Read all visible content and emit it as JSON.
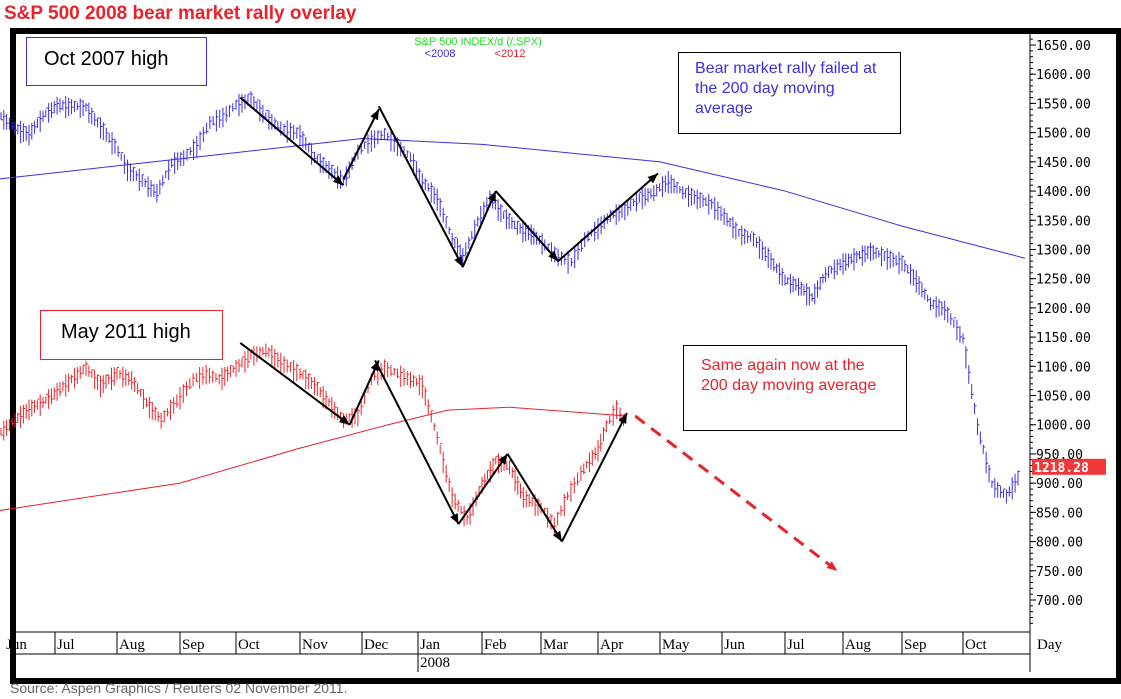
{
  "title": "S&P 500 2008 bear market rally overlay",
  "source": "Source: Aspen Graphics / Reuters 02 November 2011.",
  "colors": {
    "series_2008": "#3b2fe0",
    "series_2012": "#e8232a",
    "title": "#e8232a",
    "legend_title": "#22dd22"
  },
  "chart_data": {
    "type": "bar",
    "title": "S&P 500  INDEX/d  (/.SPX)",
    "legend": [
      {
        "label": "<2008",
        "color": "#3b2fe0"
      },
      {
        "label": "<2012",
        "color": "#e8232a"
      }
    ],
    "y_ticks": [
      "1650.00",
      "1600.00",
      "1550.00",
      "1500.00",
      "1450.00",
      "1400.00",
      "1350.00",
      "1300.00",
      "1250.00",
      "1200.00",
      "1150.00",
      "1100.00",
      "1050.00",
      "1000.00",
      "950.00",
      "900.00",
      "850.00",
      "800.00",
      "750.00",
      "700.00"
    ],
    "ylim": [
      650,
      1680
    ],
    "x_ticks": [
      "Jun",
      "Jul",
      "Aug",
      "Sep",
      "Oct",
      "Nov",
      "Dec",
      "Jan",
      "Feb",
      "Mar",
      "Apr",
      "May",
      "Jun",
      "Jul",
      "Aug",
      "Sep",
      "Oct"
    ],
    "x_year_label": "2008",
    "x_unit_label": "Day",
    "last_price_tag": "1218.28",
    "series": [
      {
        "name": "<2008",
        "color": "#3b2fe0",
        "points": [
          [
            "2007-06-04",
            1530
          ],
          [
            "2007-06-11",
            1510
          ],
          [
            "2007-06-18",
            1500
          ],
          [
            "2007-06-25",
            1530
          ],
          [
            "2007-07-02",
            1550
          ],
          [
            "2007-07-16",
            1545
          ],
          [
            "2007-07-30",
            1480
          ],
          [
            "2007-08-06",
            1440
          ],
          [
            "2007-08-13",
            1420
          ],
          [
            "2007-08-20",
            1400
          ],
          [
            "2007-08-27",
            1450
          ],
          [
            "2007-09-03",
            1460
          ],
          [
            "2007-09-10",
            1480
          ],
          [
            "2007-09-17",
            1520
          ],
          [
            "2007-09-24",
            1530
          ],
          [
            "2007-10-01",
            1550
          ],
          [
            "2007-10-08",
            1560
          ],
          [
            "2007-10-15",
            1530
          ],
          [
            "2007-10-22",
            1510
          ],
          [
            "2007-11-01",
            1500
          ],
          [
            "2007-11-08",
            1460
          ],
          [
            "2007-11-15",
            1440
          ],
          [
            "2007-11-22",
            1420
          ],
          [
            "2007-11-29",
            1470
          ],
          [
            "2007-12-06",
            1490
          ],
          [
            "2007-12-13",
            1500
          ],
          [
            "2007-12-20",
            1480
          ],
          [
            "2007-12-27",
            1460
          ],
          [
            "2008-01-03",
            1420
          ],
          [
            "2008-01-10",
            1390
          ],
          [
            "2008-01-17",
            1320
          ],
          [
            "2008-01-22",
            1290
          ],
          [
            "2008-01-29",
            1350
          ],
          [
            "2008-02-05",
            1390
          ],
          [
            "2008-02-12",
            1360
          ],
          [
            "2008-02-19",
            1340
          ],
          [
            "2008-02-26",
            1330
          ],
          [
            "2008-03-03",
            1310
          ],
          [
            "2008-03-10",
            1290
          ],
          [
            "2008-03-17",
            1280
          ],
          [
            "2008-03-24",
            1320
          ],
          [
            "2008-03-31",
            1340
          ],
          [
            "2008-04-07",
            1360
          ],
          [
            "2008-04-14",
            1370
          ],
          [
            "2008-04-21",
            1390
          ],
          [
            "2008-04-28",
            1400
          ],
          [
            "2008-05-05",
            1420
          ],
          [
            "2008-05-12",
            1400
          ],
          [
            "2008-05-19",
            1390
          ],
          [
            "2008-05-26",
            1380
          ],
          [
            "2008-06-02",
            1360
          ],
          [
            "2008-06-09",
            1330
          ],
          [
            "2008-06-16",
            1320
          ],
          [
            "2008-06-23",
            1290
          ],
          [
            "2008-07-01",
            1250
          ],
          [
            "2008-07-08",
            1240
          ],
          [
            "2008-07-15",
            1220
          ],
          [
            "2008-07-22",
            1260
          ],
          [
            "2008-08-01",
            1280
          ],
          [
            "2008-08-08",
            1290
          ],
          [
            "2008-08-15",
            1300
          ],
          [
            "2008-08-22",
            1290
          ],
          [
            "2008-09-01",
            1280
          ],
          [
            "2008-09-08",
            1250
          ],
          [
            "2008-09-15",
            1210
          ],
          [
            "2008-09-22",
            1200
          ],
          [
            "2008-10-01",
            1150
          ],
          [
            "2008-10-08",
            1000
          ],
          [
            "2008-10-15",
            900
          ],
          [
            "2008-10-22",
            880
          ],
          [
            "2008-10-29",
            920
          ]
        ]
      },
      {
        "name": "<2012",
        "color": "#e8232a",
        "points": [
          [
            "2007-06-04",
            990
          ],
          [
            "2007-06-11",
            1010
          ],
          [
            "2007-06-18",
            1030
          ],
          [
            "2007-06-25",
            1040
          ],
          [
            "2007-07-02",
            1060
          ],
          [
            "2007-07-09",
            1080
          ],
          [
            "2007-07-16",
            1100
          ],
          [
            "2007-07-23",
            1070
          ],
          [
            "2007-08-01",
            1090
          ],
          [
            "2007-08-08",
            1080
          ],
          [
            "2007-08-15",
            1040
          ],
          [
            "2007-08-22",
            1010
          ],
          [
            "2007-09-01",
            1050
          ],
          [
            "2007-09-08",
            1080
          ],
          [
            "2007-09-15",
            1090
          ],
          [
            "2007-09-22",
            1080
          ],
          [
            "2007-10-01",
            1100
          ],
          [
            "2007-10-08",
            1120
          ],
          [
            "2007-10-15",
            1130
          ],
          [
            "2007-10-22",
            1110
          ],
          [
            "2007-11-01",
            1090
          ],
          [
            "2007-11-08",
            1070
          ],
          [
            "2007-11-15",
            1040
          ],
          [
            "2007-11-22",
            1010
          ],
          [
            "2007-11-29",
            1020
          ],
          [
            "2007-12-06",
            1080
          ],
          [
            "2007-12-13",
            1100
          ],
          [
            "2007-12-20",
            1090
          ],
          [
            "2007-12-27",
            1080
          ],
          [
            "2008-01-03",
            1070
          ],
          [
            "2008-01-10",
            980
          ],
          [
            "2008-01-17",
            880
          ],
          [
            "2008-01-24",
            840
          ],
          [
            "2008-02-01",
            900
          ],
          [
            "2008-02-08",
            940
          ],
          [
            "2008-02-15",
            930
          ],
          [
            "2008-02-22",
            880
          ],
          [
            "2008-03-01",
            860
          ],
          [
            "2008-03-08",
            830
          ],
          [
            "2008-03-15",
            880
          ],
          [
            "2008-03-22",
            920
          ],
          [
            "2008-04-01",
            960
          ],
          [
            "2008-04-05",
            1000
          ],
          [
            "2008-04-10",
            1030
          ],
          [
            "2008-04-15",
            1000
          ]
        ]
      }
    ],
    "moving_averages": [
      {
        "label": "200 day moving average",
        "color": "#3b2fe0",
        "points": [
          [
            "2007-06-01",
            1420
          ],
          [
            "2007-09-01",
            1455
          ],
          [
            "2007-12-01",
            1490
          ],
          [
            "2008-02-01",
            1480
          ],
          [
            "2008-05-01",
            1450
          ],
          [
            "2008-07-01",
            1400
          ],
          [
            "2008-09-01",
            1340
          ],
          [
            "2008-10-31",
            1285
          ]
        ]
      },
      {
        "label": "200 day moving average",
        "color": "#e8232a",
        "points": [
          [
            "2007-06-01",
            852
          ],
          [
            "2007-09-01",
            900
          ],
          [
            "2007-11-01",
            960
          ],
          [
            "2007-12-15",
            1000
          ],
          [
            "2008-01-15",
            1025
          ],
          [
            "2008-02-15",
            1030
          ],
          [
            "2008-04-15",
            1015
          ]
        ]
      }
    ],
    "arrows": [
      {
        "color": "#000000",
        "dashed": false,
        "points": [
          [
            "2007-10-03",
            1560
          ],
          [
            "2007-11-22",
            1410
          ]
        ]
      },
      {
        "color": "#000000",
        "dashed": false,
        "points": [
          [
            "2007-11-22",
            1420
          ],
          [
            "2007-12-10",
            1540
          ]
        ]
      },
      {
        "color": "#000000",
        "dashed": false,
        "points": [
          [
            "2007-12-10",
            1545
          ],
          [
            "2008-01-22",
            1270
          ]
        ]
      },
      {
        "color": "#000000",
        "dashed": false,
        "points": [
          [
            "2008-01-22",
            1270
          ],
          [
            "2008-02-08",
            1400
          ]
        ]
      },
      {
        "color": "#000000",
        "dashed": false,
        "points": [
          [
            "2008-02-08",
            1400
          ],
          [
            "2008-03-10",
            1280
          ]
        ]
      },
      {
        "color": "#000000",
        "dashed": false,
        "points": [
          [
            "2008-03-10",
            1280
          ],
          [
            "2008-04-30",
            1430
          ]
        ]
      },
      {
        "color": "#000000",
        "dashed": false,
        "points": [
          [
            "2007-10-03",
            1140
          ],
          [
            "2007-11-25",
            1000
          ]
        ]
      },
      {
        "color": "#000000",
        "dashed": false,
        "points": [
          [
            "2007-11-25",
            1000
          ],
          [
            "2007-12-10",
            1110
          ]
        ]
      },
      {
        "color": "#000000",
        "dashed": false,
        "points": [
          [
            "2007-12-08",
            1110
          ],
          [
            "2008-01-20",
            830
          ]
        ]
      },
      {
        "color": "#000000",
        "dashed": false,
        "points": [
          [
            "2008-01-20",
            830
          ],
          [
            "2008-02-14",
            950
          ]
        ]
      },
      {
        "color": "#000000",
        "dashed": false,
        "points": [
          [
            "2008-02-14",
            950
          ],
          [
            "2008-03-12",
            800
          ]
        ]
      },
      {
        "color": "#000000",
        "dashed": false,
        "points": [
          [
            "2008-03-12",
            800
          ],
          [
            "2008-04-15",
            1020
          ]
        ]
      },
      {
        "color": "#e8232a",
        "dashed": true,
        "points": [
          [
            "2008-04-19",
            1015
          ],
          [
            "2008-07-28",
            750
          ]
        ]
      }
    ],
    "annotations": {
      "oct2007": "Oct 2007 high",
      "may2011": "May 2011 high",
      "bear_rally": "Bear market rally failed at the 200 day moving average",
      "same_again": "Same again now at the 200 day moving average"
    }
  }
}
